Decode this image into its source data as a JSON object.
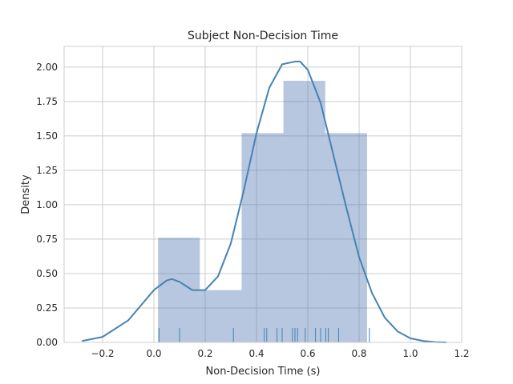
{
  "chart_data": {
    "type": "histogram",
    "title": "Subject Non-Decision Time",
    "xlabel": "Non-Decision Time (s)",
    "ylabel": "Density",
    "xlim": [
      -0.35,
      1.2
    ],
    "ylim": [
      0,
      2.15
    ],
    "grid": true,
    "x_ticks": [
      -0.2,
      0.0,
      0.2,
      0.4,
      0.6,
      0.8,
      1.0,
      1.2
    ],
    "x_tick_labels": [
      "−0.2",
      "0.0",
      "0.2",
      "0.4",
      "0.6",
      "0.8",
      "1.0",
      "1.2"
    ],
    "y_ticks": [
      0,
      0.25,
      0.5,
      0.75,
      1.0,
      1.25,
      1.5,
      1.75,
      2.0
    ],
    "y_tick_labels": [
      "0.00",
      "0.25",
      "0.50",
      "0.75",
      "1.00",
      "1.25",
      "1.50",
      "1.75",
      "2.00"
    ],
    "histogram": {
      "bin_edges": [
        0.016,
        0.179,
        0.342,
        0.505,
        0.668,
        0.831
      ],
      "density": [
        0.76,
        0.38,
        1.52,
        1.9,
        1.52
      ],
      "color": "#4c72b0"
    },
    "kde": {
      "color": "#4682b4",
      "x": [
        -0.28,
        -0.2,
        -0.1,
        0.0,
        0.05,
        0.07,
        0.1,
        0.15,
        0.2,
        0.25,
        0.3,
        0.35,
        0.4,
        0.45,
        0.5,
        0.55,
        0.57,
        0.6,
        0.65,
        0.7,
        0.75,
        0.8,
        0.85,
        0.9,
        0.95,
        1.0,
        1.05,
        1.1,
        1.14
      ],
      "y": [
        0.01,
        0.04,
        0.16,
        0.38,
        0.45,
        0.46,
        0.44,
        0.38,
        0.38,
        0.48,
        0.72,
        1.1,
        1.52,
        1.85,
        2.02,
        2.04,
        2.04,
        1.98,
        1.74,
        1.36,
        0.98,
        0.62,
        0.36,
        0.18,
        0.08,
        0.03,
        0.01,
        0.002,
        0.0
      ]
    },
    "rug": {
      "color": "#4682b4",
      "values": [
        0.02,
        0.1,
        0.31,
        0.43,
        0.44,
        0.48,
        0.5,
        0.54,
        0.55,
        0.56,
        0.59,
        0.63,
        0.65,
        0.67,
        0.68,
        0.72,
        0.84
      ]
    }
  }
}
